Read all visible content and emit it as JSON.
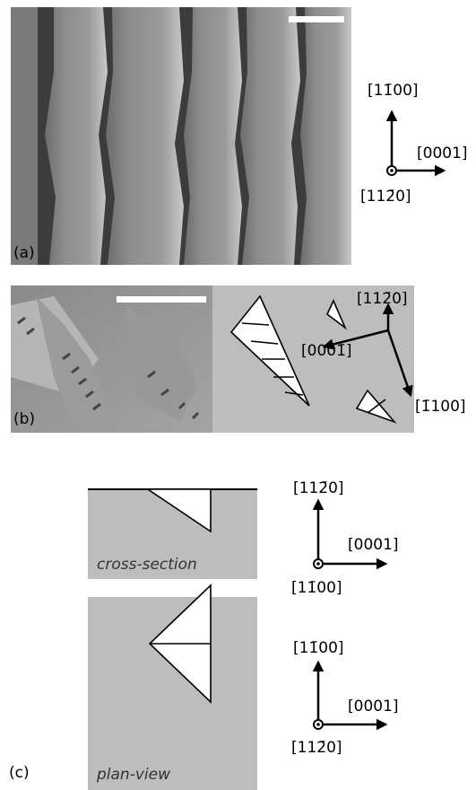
{
  "panel_a": {
    "label": "(a)",
    "directions": [
      "[11̄00]",
      "[0001]",
      "[112̄0]"
    ]
  },
  "panel_b": {
    "label": "(b)",
    "directions": [
      "[112̄0]",
      "[0001̄]",
      "[1̄100]"
    ]
  },
  "panel_c": {
    "label": "(c)",
    "cross_section": {
      "caption": "cross-section",
      "directions": [
        "[112̄0]",
        "[0001]",
        "[11̄00]"
      ]
    },
    "plan_view": {
      "caption": "plan-view",
      "directions": [
        "[11̄00]",
        "[0001]",
        "[112̄0]"
      ]
    }
  }
}
